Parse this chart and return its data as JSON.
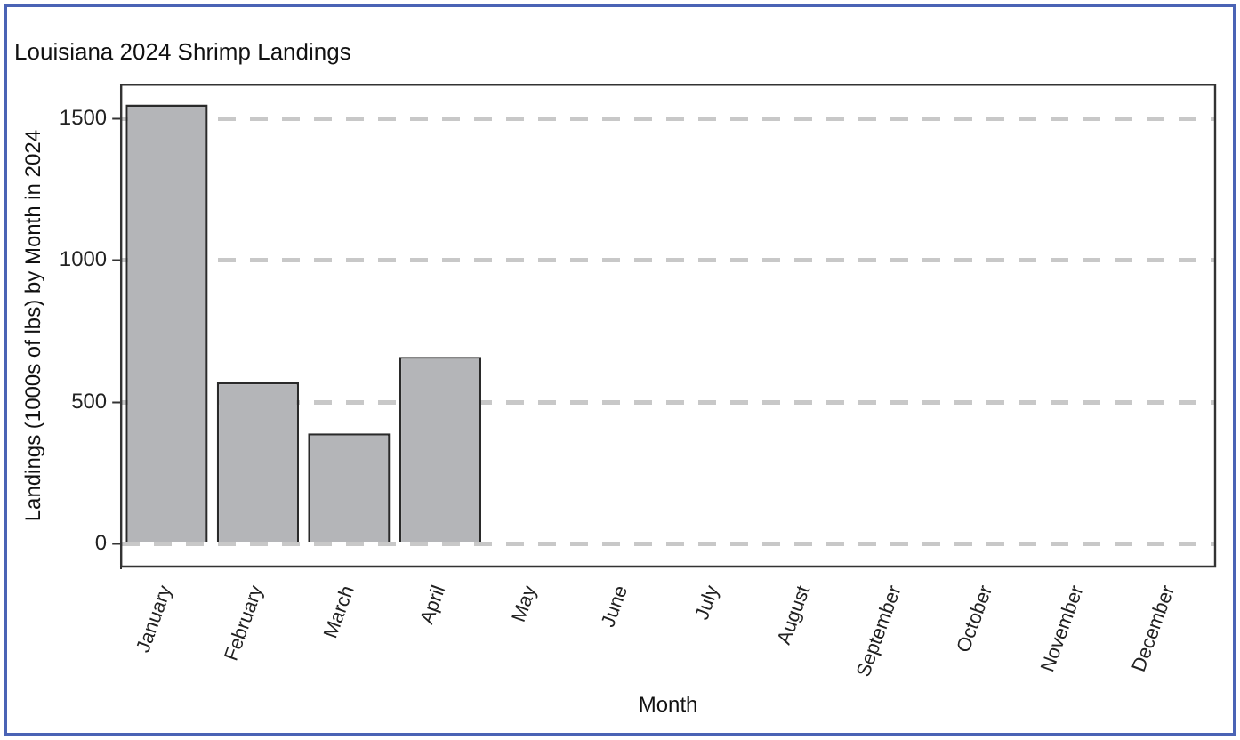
{
  "chart_data": {
    "type": "bar",
    "title": "Louisiana 2024 Shrimp Landings",
    "xlabel": "Month",
    "ylabel": "Landings (1000s of lbs) by Month in 2024",
    "categories": [
      "January",
      "February",
      "March",
      "April",
      "May",
      "June",
      "July",
      "August",
      "September",
      "October",
      "November",
      "December"
    ],
    "values": [
      1550,
      570,
      390,
      660,
      null,
      null,
      null,
      null,
      null,
      null,
      null,
      null
    ],
    "color": "#b4b5b8",
    "ylim": [
      -80,
      1620
    ],
    "yticks": [
      0,
      500,
      1000,
      1500
    ],
    "grid": "y",
    "legend": false
  }
}
